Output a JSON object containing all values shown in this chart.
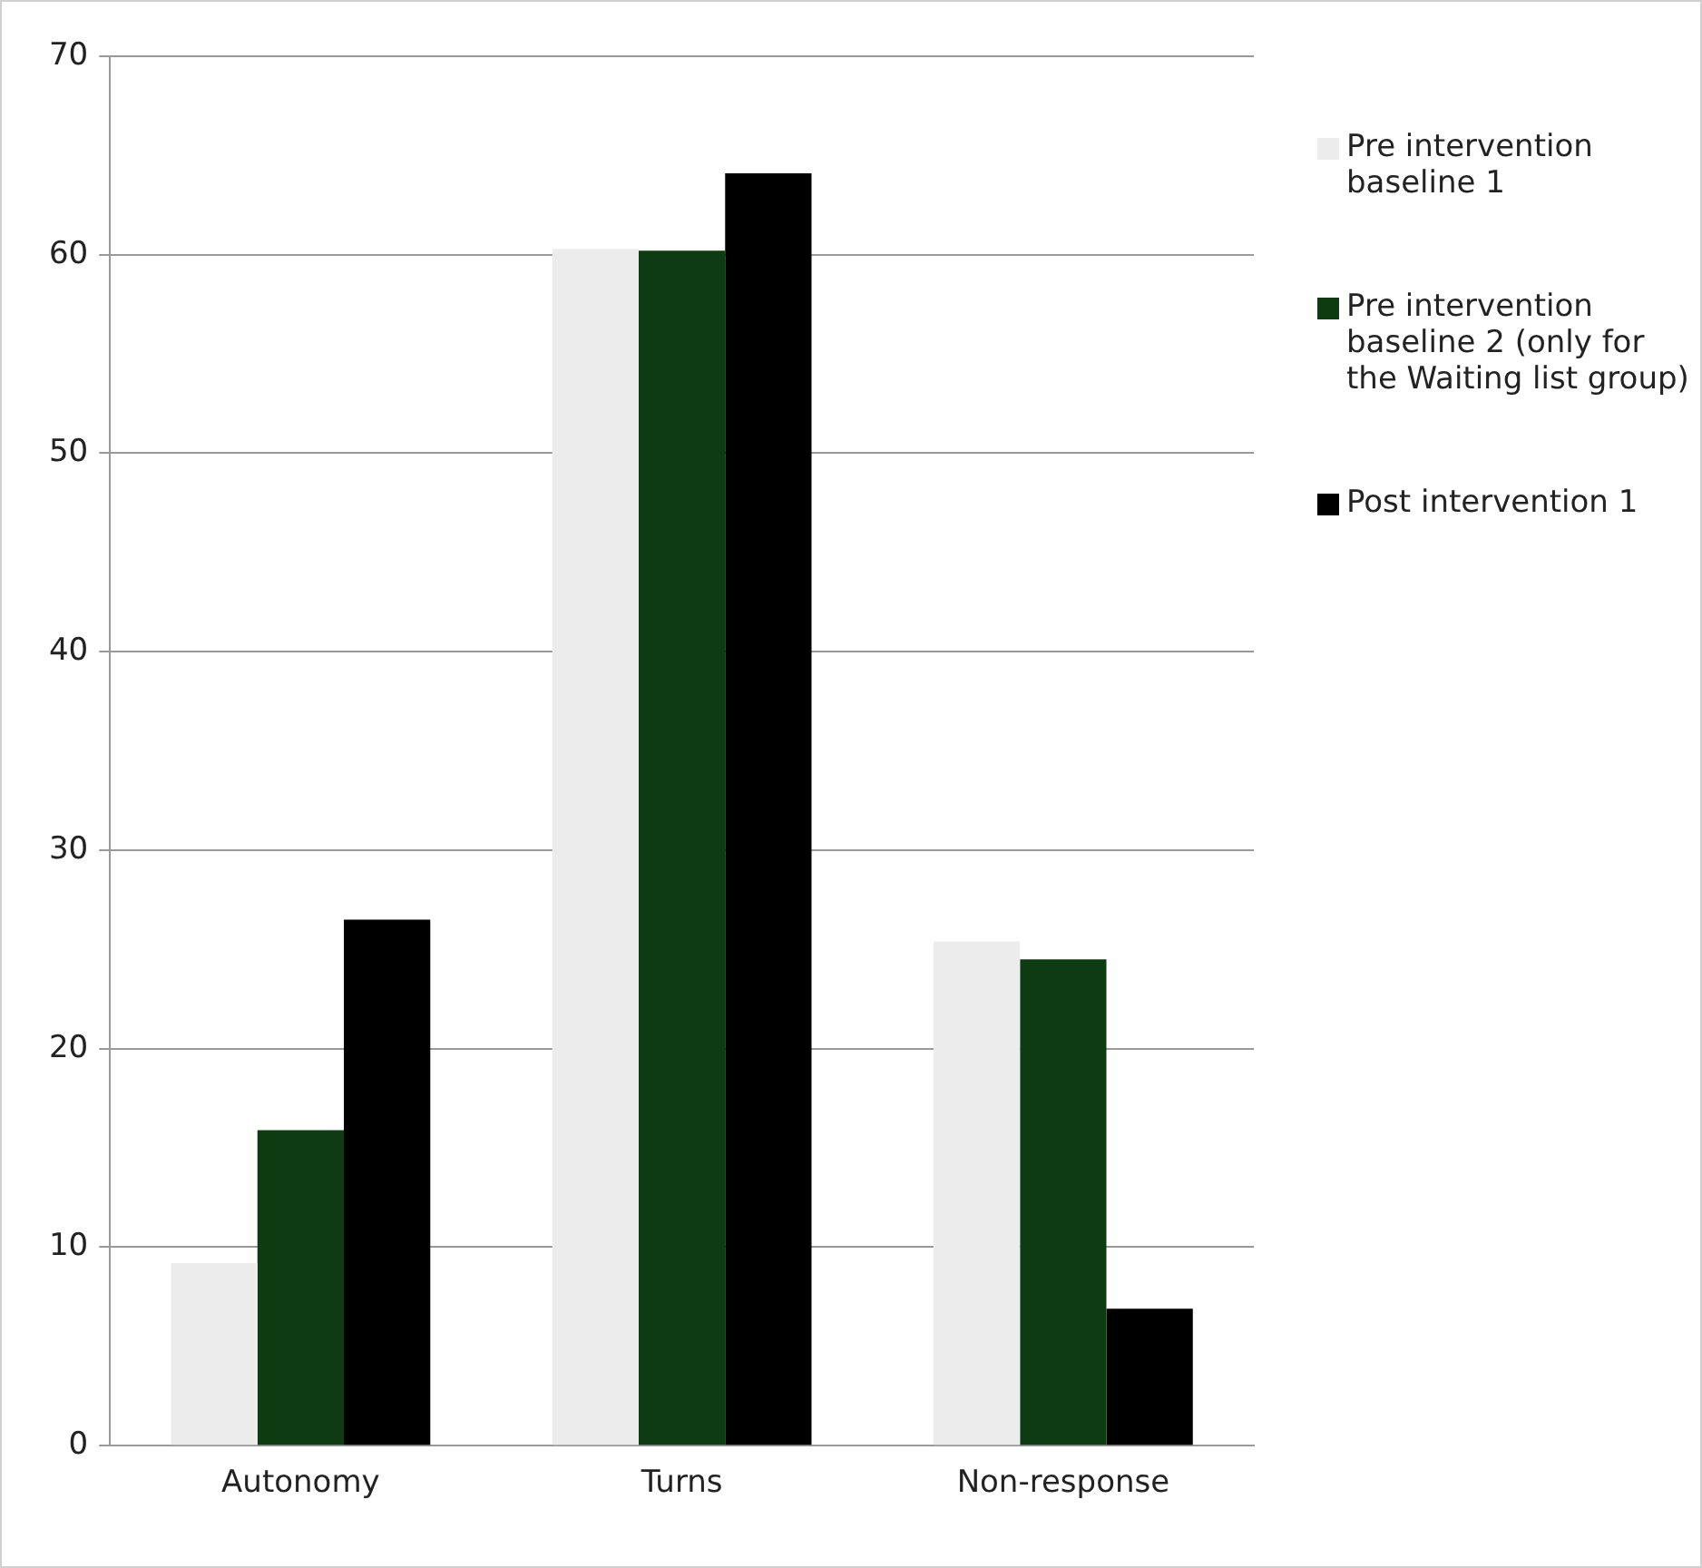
{
  "chart_data": {
    "type": "bar",
    "categories": [
      "Autonomy",
      "Turns",
      "Non-response"
    ],
    "series": [
      {
        "name": "Pre intervention baseline 1",
        "color": "#ececec",
        "values": [
          9.2,
          60.3,
          25.4
        ]
      },
      {
        "name": "Pre intervention baseline 2 (only for the Waiting list group)",
        "color": "#0e3b12",
        "values": [
          15.9,
          60.2,
          24.5
        ]
      },
      {
        "name": "Post intervention 1",
        "color": "#000000",
        "values": [
          26.5,
          64.1,
          6.9
        ]
      }
    ],
    "ylim": [
      0,
      70
    ],
    "yticks": [
      0,
      10,
      20,
      30,
      40,
      50,
      60,
      70
    ],
    "grid": "y",
    "legend": "right"
  }
}
